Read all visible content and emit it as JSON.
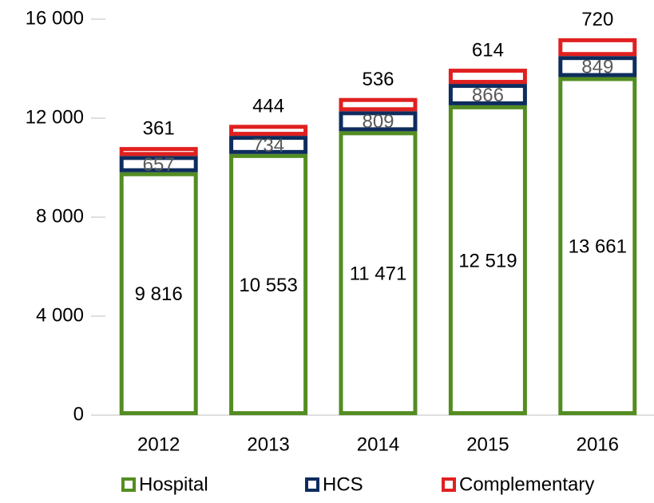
{
  "chart_data": {
    "type": "stacked_bar",
    "categories": [
      "2012",
      "2013",
      "2014",
      "2015",
      "2016"
    ],
    "series": [
      {
        "name": "Hospital",
        "color": "#538d22",
        "values": [
          9816,
          10553,
          11471,
          12519,
          13661
        ],
        "value_labels": [
          "9 816",
          "10 553",
          "11 471",
          "12 519",
          "13 661"
        ]
      },
      {
        "name": "HCS",
        "color": "#0e2d5e",
        "values": [
          657,
          734,
          809,
          866,
          849
        ]
      },
      {
        "name": "Complementary",
        "color": "#e02020",
        "values": [
          361,
          444,
          536,
          614,
          720
        ]
      }
    ],
    "ylim": [
      0,
      16000
    ],
    "yticks": [
      0,
      {
        "value": 4000,
        "label": "4 000"
      },
      {
        "value": 8000,
        "label": "8 000"
      },
      {
        "value": 12000,
        "label": "12 000"
      },
      {
        "value": 16000,
        "label": "16 000"
      }
    ],
    "legend": "bottom"
  }
}
